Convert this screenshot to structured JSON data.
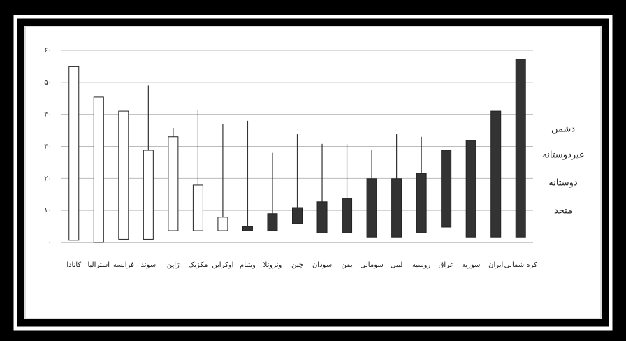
{
  "chart_data": {
    "type": "floating_bar",
    "categories": [
      "کانادا",
      "استرالیا",
      "فرانسه",
      "سوئد",
      "ژاپن",
      "مکزیک",
      "اوکراین",
      "ویتنام",
      "ونزوئلا",
      "چین",
      "سودان",
      "یمن",
      "سومالی",
      "لیبی",
      "روسیه",
      "عراق",
      "سوریه",
      "ایران",
      "کره شمالی"
    ],
    "box_low": [
      0.7,
      0,
      1,
      1,
      3.7,
      3.7,
      3.7,
      3.7,
      3.7,
      5.9,
      3,
      3,
      1.7,
      1.7,
      3,
      4.8,
      1.7,
      1.7,
      1.7
    ],
    "box_high": [
      54.9,
      45.4,
      41,
      28.8,
      33,
      17.9,
      7.9,
      5,
      9,
      10.9,
      12.7,
      13.8,
      19.9,
      19.9,
      21.6,
      28.8,
      31.9,
      41,
      57.2
    ],
    "whisker_high": [
      null,
      null,
      null,
      49,
      35.8,
      41.5,
      36.9,
      38,
      28,
      33.8,
      30.8,
      30.8,
      28.8,
      33.8,
      33,
      null,
      null,
      null,
      null
    ],
    "colors": [
      "#ffffff",
      "#ffffff",
      "#ffffff",
      "#ffffff",
      "#ffffff",
      "#ffffff",
      "#ffffff",
      "#333333",
      "#333333",
      "#333333",
      "#333333",
      "#333333",
      "#333333",
      "#333333",
      "#333333",
      "#333333",
      "#333333",
      "#333333",
      "#333333"
    ],
    "ylim": [
      0,
      60
    ],
    "yticks": [
      {
        "value": 0,
        "label": "۰"
      },
      {
        "value": 10,
        "label": "۱۰"
      },
      {
        "value": 20,
        "label": "۲۰"
      },
      {
        "value": 30,
        "label": "۳۰"
      },
      {
        "value": 40,
        "label": "۴۰"
      },
      {
        "value": 50,
        "label": "۵۰"
      },
      {
        "value": 60,
        "label": "۶۰"
      }
    ],
    "grid": true,
    "annotations": [
      "دشمن",
      "غیردوستانه",
      "دوستانه",
      "متحد"
    ]
  }
}
